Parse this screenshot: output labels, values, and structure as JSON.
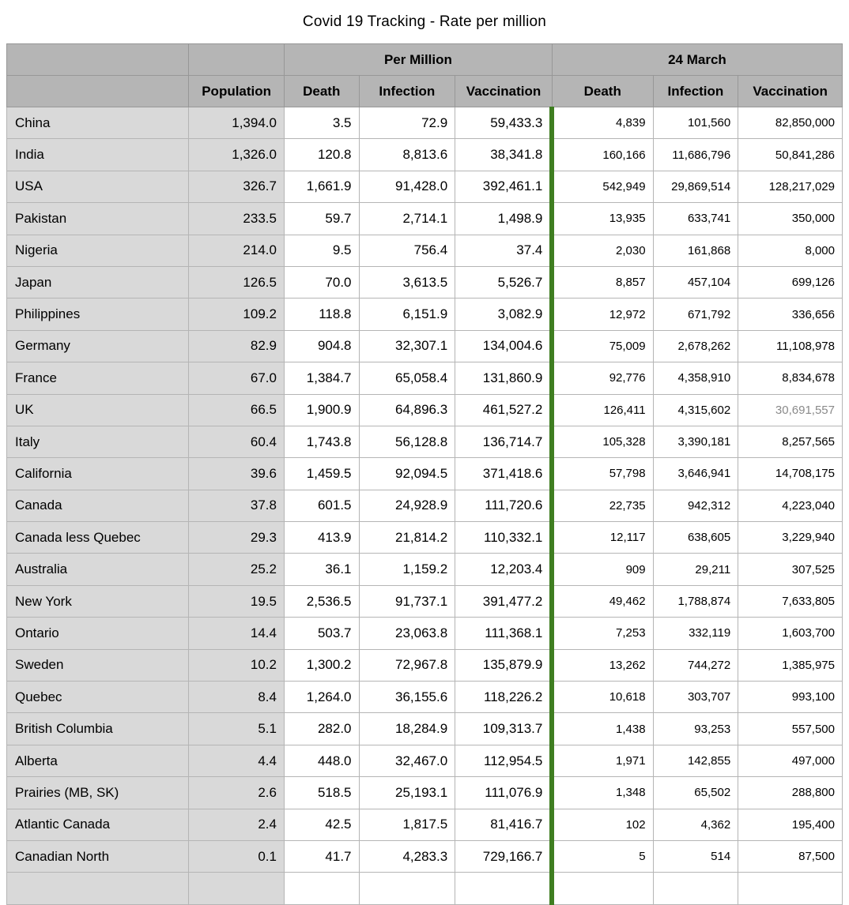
{
  "title": "Covid 19 Tracking - Rate per million",
  "colors": {
    "header_background": "#b5b5b5",
    "label_background": "#d9d9d9",
    "green_separator": "#3f7e21",
    "muted_text": "#8a8a8a",
    "border": "#b5b5b5"
  },
  "chart_data": {
    "type": "table",
    "title": "Covid 19 Tracking - Rate per million",
    "group_headers": [
      {
        "label": "Per Million",
        "span": 3
      },
      {
        "label": "24 March",
        "span": 3
      }
    ],
    "column_headers": [
      "",
      "Population",
      "Death",
      "Infection",
      "Vaccination",
      "Death",
      "Infection",
      "Vaccination"
    ],
    "rows": [
      {
        "name": "China",
        "values": [
          "1,394.0",
          "3.5",
          "72.9",
          "59,433.3",
          "4,839",
          "101,560",
          "82,850,000"
        ]
      },
      {
        "name": "India",
        "values": [
          "1,326.0",
          "120.8",
          "8,813.6",
          "38,341.8",
          "160,166",
          "11,686,796",
          "50,841,286"
        ]
      },
      {
        "name": "USA",
        "values": [
          "326.7",
          "1,661.9",
          "91,428.0",
          "392,461.1",
          "542,949",
          "29,869,514",
          "128,217,029"
        ]
      },
      {
        "name": "Pakistan",
        "values": [
          "233.5",
          "59.7",
          "2,714.1",
          "1,498.9",
          "13,935",
          "633,741",
          "350,000"
        ]
      },
      {
        "name": "Nigeria",
        "values": [
          "214.0",
          "9.5",
          "756.4",
          "37.4",
          "2,030",
          "161,868",
          "8,000"
        ]
      },
      {
        "name": "Japan",
        "values": [
          "126.5",
          "70.0",
          "3,613.5",
          "5,526.7",
          "8,857",
          "457,104",
          "699,126"
        ]
      },
      {
        "name": "Philippines",
        "values": [
          "109.2",
          "118.8",
          "6,151.9",
          "3,082.9",
          "12,972",
          "671,792",
          "336,656"
        ]
      },
      {
        "name": "Germany",
        "values": [
          "82.9",
          "904.8",
          "32,307.1",
          "134,004.6",
          "75,009",
          "2,678,262",
          "11,108,978"
        ]
      },
      {
        "name": "France",
        "values": [
          "67.0",
          "1,384.7",
          "65,058.4",
          "131,860.9",
          "92,776",
          "4,358,910",
          "8,834,678"
        ]
      },
      {
        "name": "UK",
        "values": [
          "66.5",
          "1,900.9",
          "64,896.3",
          "461,527.2",
          "126,411",
          "4,315,602",
          "30,691,557"
        ],
        "muted_value_index": 6
      },
      {
        "name": "Italy",
        "values": [
          "60.4",
          "1,743.8",
          "56,128.8",
          "136,714.7",
          "105,328",
          "3,390,181",
          "8,257,565"
        ]
      },
      {
        "name": "California",
        "values": [
          "39.6",
          "1,459.5",
          "92,094.5",
          "371,418.6",
          "57,798",
          "3,646,941",
          "14,708,175"
        ]
      },
      {
        "name": "Canada",
        "values": [
          "37.8",
          "601.5",
          "24,928.9",
          "111,720.6",
          "22,735",
          "942,312",
          "4,223,040"
        ]
      },
      {
        "name": "Canada less Quebec",
        "values": [
          "29.3",
          "413.9",
          "21,814.2",
          "110,332.1",
          "12,117",
          "638,605",
          "3,229,940"
        ]
      },
      {
        "name": "Australia",
        "values": [
          "25.2",
          "36.1",
          "1,159.2",
          "12,203.4",
          "909",
          "29,211",
          "307,525"
        ]
      },
      {
        "name": "New York",
        "values": [
          "19.5",
          "2,536.5",
          "91,737.1",
          "391,477.2",
          "49,462",
          "1,788,874",
          "7,633,805"
        ]
      },
      {
        "name": "Ontario",
        "values": [
          "14.4",
          "503.7",
          "23,063.8",
          "111,368.1",
          "7,253",
          "332,119",
          "1,603,700"
        ]
      },
      {
        "name": "Sweden",
        "values": [
          "10.2",
          "1,300.2",
          "72,967.8",
          "135,879.9",
          "13,262",
          "744,272",
          "1,385,975"
        ]
      },
      {
        "name": "Quebec",
        "values": [
          "8.4",
          "1,264.0",
          "36,155.6",
          "118,226.2",
          "10,618",
          "303,707",
          "993,100"
        ]
      },
      {
        "name": "British Columbia",
        "values": [
          "5.1",
          "282.0",
          "18,284.9",
          "109,313.7",
          "1,438",
          "93,253",
          "557,500"
        ]
      },
      {
        "name": "Alberta",
        "values": [
          "4.4",
          "448.0",
          "32,467.0",
          "112,954.5",
          "1,971",
          "142,855",
          "497,000"
        ]
      },
      {
        "name": "Prairies (MB, SK)",
        "values": [
          "2.6",
          "518.5",
          "25,193.1",
          "111,076.9",
          "1,348",
          "65,502",
          "288,800"
        ]
      },
      {
        "name": "Atlantic Canada",
        "values": [
          "2.4",
          "42.5",
          "1,817.5",
          "81,416.7",
          "102",
          "4,362",
          "195,400"
        ]
      },
      {
        "name": "Canadian North",
        "values": [
          "0.1",
          "41.7",
          "4,283.3",
          "729,166.7",
          "5",
          "514",
          "87,500"
        ]
      }
    ]
  }
}
